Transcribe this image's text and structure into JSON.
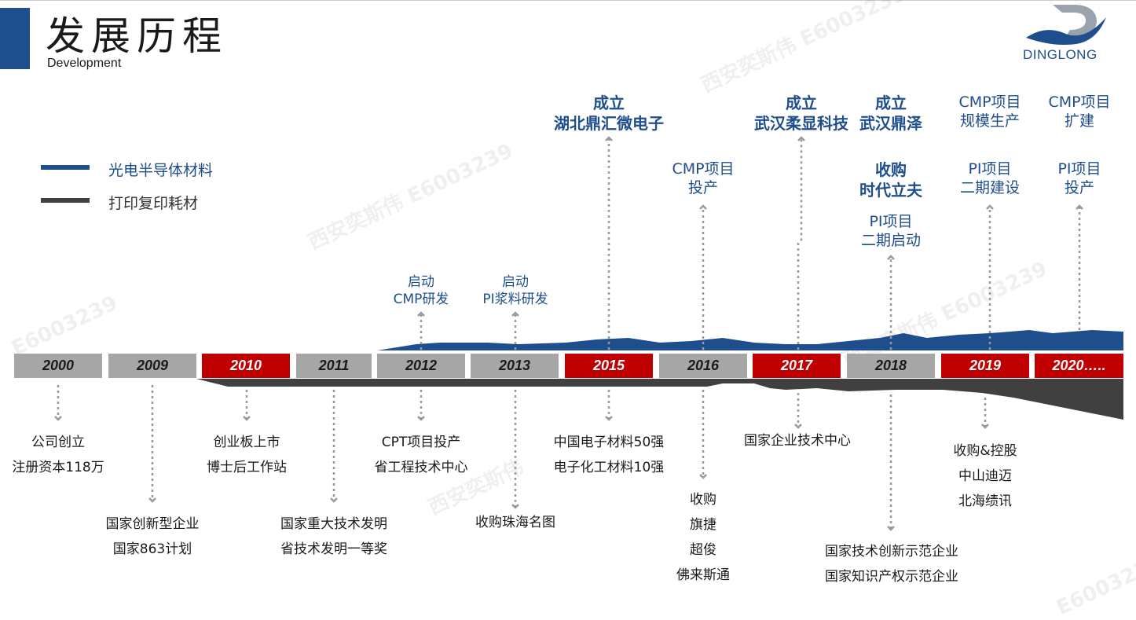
{
  "header": {
    "title": "发展历程",
    "subtitle": "Development",
    "logo_text": "DINGLONG",
    "accent_color": "#1f4e8c"
  },
  "legend": [
    {
      "label": "光电半导体材料",
      "color": "#1f4e8c"
    },
    {
      "label": "打印复印耗材",
      "color": "#404040"
    }
  ],
  "timeline": {
    "years": [
      {
        "label": "2000",
        "style": "gray"
      },
      {
        "label": "2009",
        "style": "gray"
      },
      {
        "label": "2010",
        "style": "red"
      },
      {
        "label": "2011",
        "style": "gray"
      },
      {
        "label": "2012",
        "style": "gray"
      },
      {
        "label": "2013",
        "style": "gray"
      },
      {
        "label": "2015",
        "style": "red"
      },
      {
        "label": "2016",
        "style": "gray"
      },
      {
        "label": "2017",
        "style": "red"
      },
      {
        "label": "2018",
        "style": "gray"
      },
      {
        "label": "2019",
        "style": "red"
      },
      {
        "label": "2020…..",
        "style": "red"
      }
    ],
    "colors": {
      "red": "#c00000",
      "gray": "#a6a6a6"
    }
  },
  "above_events": {
    "e2012": [
      "启动",
      "CMP研发"
    ],
    "e2013": [
      "启动",
      "PI浆料研发"
    ],
    "e2015": [
      "成立",
      "湖北鼎汇微电子"
    ],
    "e2016": [
      "CMP项目",
      "投产"
    ],
    "e2017": [
      "成立",
      "武汉柔显科技"
    ],
    "e2018a": [
      "成立",
      "武汉鼎泽"
    ],
    "e2018b": [
      "收购",
      "时代立夫"
    ],
    "e2018c": [
      "PI项目",
      "二期启动"
    ],
    "e2019a": [
      "CMP项目",
      "规模生产"
    ],
    "e2019b": [
      "PI项目",
      "二期建设"
    ],
    "e2020a": [
      "CMP项目",
      "扩建"
    ],
    "e2020b": [
      "PI项目",
      "投产"
    ]
  },
  "below_events": {
    "e2000": [
      "公司创立",
      "注册资本118万"
    ],
    "e2009": [
      "国家创新型企业",
      "国家863计划"
    ],
    "e2010": [
      "创业板上市",
      "博士后工作站"
    ],
    "e2011": [
      "国家重大技术发明",
      "省技术发明一等奖"
    ],
    "e2012": [
      "CPT项目投产",
      "省工程技术中心"
    ],
    "e2013": [
      "收购珠海名图"
    ],
    "e2015": [
      "中国电子材料50强",
      "电子化工材料10强"
    ],
    "e2016": [
      "收购",
      "旗捷",
      "超俊",
      "佛来斯通"
    ],
    "e2017": [
      "国家企业技术中心"
    ],
    "e2018": [
      "国家技术创新示范企业",
      "国家知识产权示范企业"
    ],
    "e2019": [
      "收购&控股",
      "中山迪迈",
      "北海绩讯"
    ]
  },
  "watermarks": [
    "西安奕斯伟",
    "E6003239"
  ]
}
